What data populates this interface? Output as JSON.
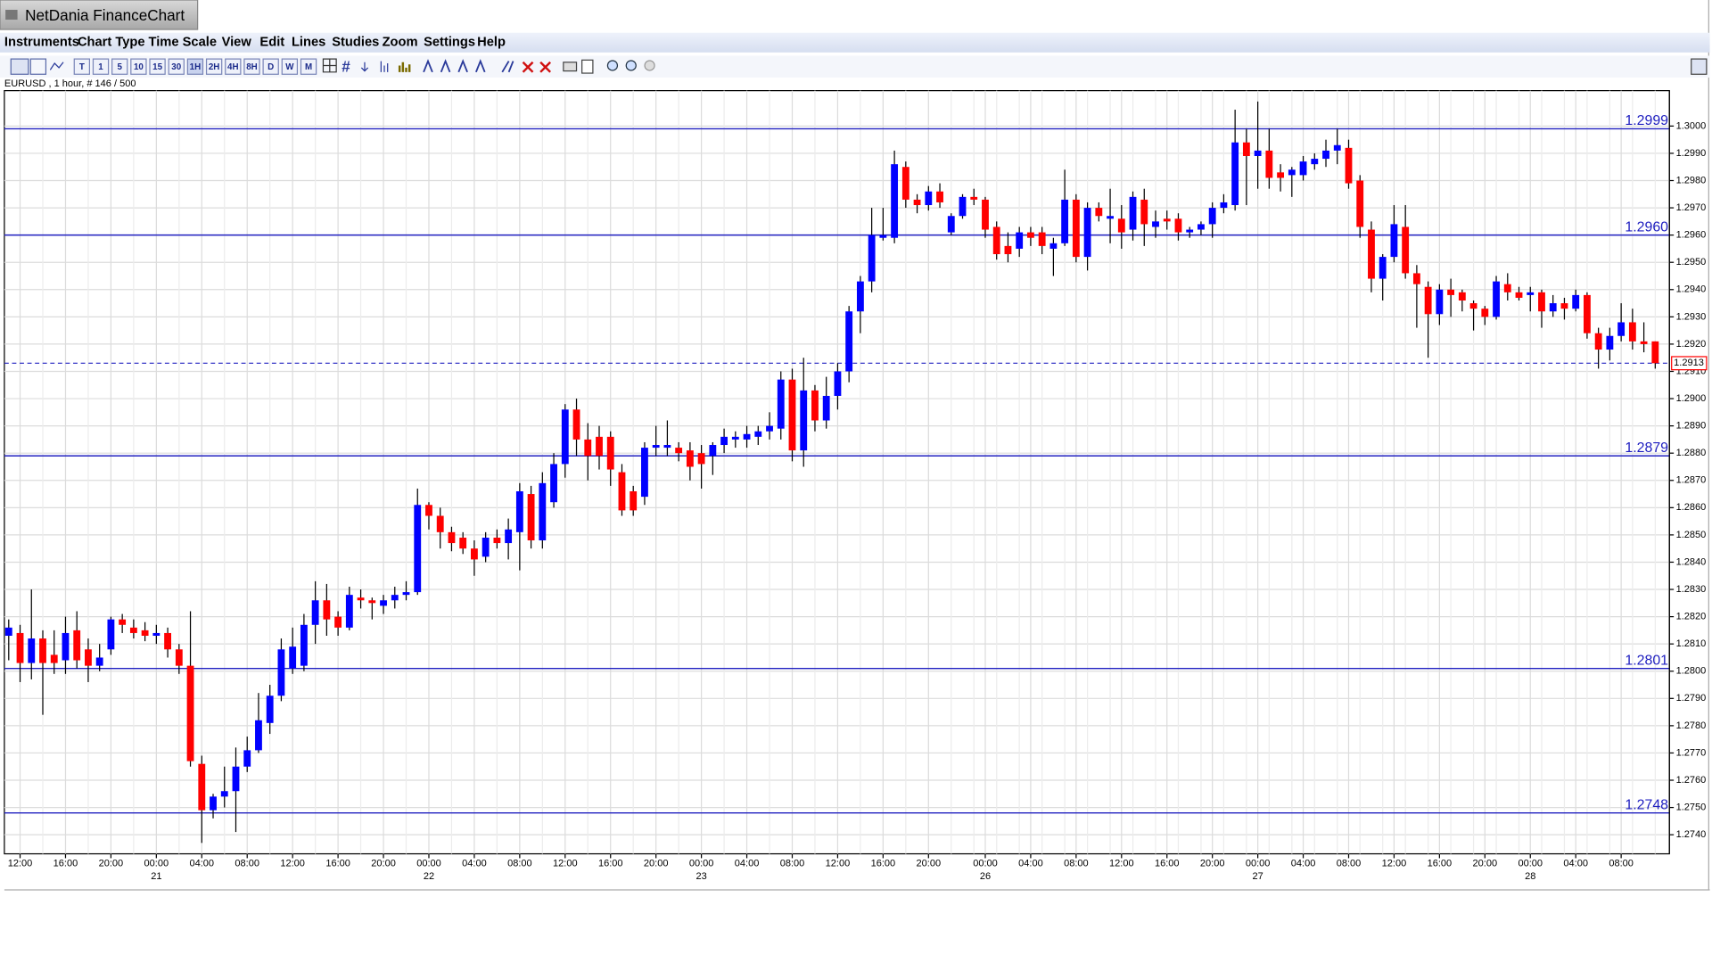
{
  "window": {
    "title": "NetDania FinanceChart",
    "menu": [
      "Instruments",
      "Chart Type",
      "Time Scale",
      "View",
      "Edit",
      "Lines",
      "Studies",
      "Zoom",
      "Settings",
      "Help"
    ],
    "toolbar": [
      "T",
      "1",
      "5",
      "10",
      "15",
      "30",
      "1H",
      "2H",
      "4H",
      "8H",
      "D",
      "W",
      "M"
    ]
  },
  "chart_data": {
    "type": "candlestick",
    "title": "EURUSD , 1 hour, # 146 / 500",
    "up_color": "#0000ff",
    "down_color": "#ff0000",
    "level_color": "#2020c0",
    "grid": true,
    "categories": [
      null,
      "12:00",
      null,
      null,
      null,
      "16:00",
      null,
      null,
      null,
      "20:00",
      null,
      null,
      null,
      "00:00",
      null,
      null,
      null,
      "04:00",
      null,
      null,
      null,
      "08:00",
      null,
      null,
      null,
      "12:00",
      null,
      null,
      null,
      "16:00",
      null,
      null,
      null,
      "20:00",
      null,
      null,
      null,
      "00:00",
      null,
      null,
      null,
      "04:00",
      null,
      null,
      null,
      "08:00",
      null,
      null,
      null,
      "12:00",
      null,
      null,
      null,
      "16:00",
      null,
      null,
      null,
      "20:00",
      null,
      null,
      null,
      "00:00",
      null,
      null,
      null,
      "04:00",
      null,
      null,
      null,
      "08:00",
      null,
      null,
      null,
      "12:00",
      null,
      null,
      null,
      "16:00",
      null,
      null,
      null,
      "20:00",
      null,
      null,
      null,
      null,
      "00:00",
      null,
      null,
      null,
      "04:00",
      null,
      null,
      null,
      "08:00",
      null,
      null,
      null,
      "12:00",
      null,
      null,
      null,
      "16:00",
      null,
      null,
      null,
      "20:00",
      null,
      null,
      null,
      "00:00",
      null,
      null,
      null,
      "04:00",
      null,
      null,
      null,
      "08:00",
      null,
      null,
      null,
      "12:00",
      null,
      null,
      null,
      "16:00",
      null,
      null,
      null,
      "20:00",
      null,
      null,
      null,
      "00:00",
      null,
      null,
      null,
      "04:00",
      null,
      null,
      null,
      "08:00",
      null,
      null,
      null
    ],
    "dates": [
      null,
      null,
      null,
      null,
      null,
      null,
      null,
      null,
      null,
      null,
      null,
      null,
      null,
      "21",
      null,
      null,
      null,
      null,
      null,
      null,
      null,
      null,
      null,
      null,
      null,
      null,
      null,
      null,
      null,
      null,
      null,
      null,
      null,
      null,
      null,
      null,
      null,
      "22",
      null,
      null,
      null,
      null,
      null,
      null,
      null,
      null,
      null,
      null,
      null,
      null,
      null,
      null,
      null,
      null,
      null,
      null,
      null,
      null,
      null,
      null,
      null,
      "23",
      null,
      null,
      null,
      null,
      null,
      null,
      null,
      null,
      null,
      null,
      null,
      null,
      null,
      null,
      null,
      null,
      null,
      null,
      null,
      null,
      null,
      null,
      null,
      null,
      "26",
      null,
      null,
      null,
      null,
      null,
      null,
      null,
      null,
      null,
      null,
      null,
      null,
      null,
      null,
      null,
      null,
      null,
      null,
      null,
      null,
      null,
      null,
      null,
      "27",
      null,
      null,
      null,
      null,
      null,
      null,
      null,
      null,
      null,
      null,
      null,
      null,
      null,
      null,
      null,
      null,
      null,
      null,
      null,
      null,
      null,
      null,
      null,
      "28",
      null,
      null,
      null,
      null,
      null,
      null,
      null,
      null,
      null,
      null,
      null
    ],
    "open": [
      1.2813,
      1.2814,
      1.2803,
      1.2812,
      1.2806,
      1.2804,
      1.2815,
      1.2808,
      1.2802,
      1.2808,
      1.2819,
      1.2816,
      1.2815,
      1.2813,
      1.2814,
      1.2808,
      1.2802,
      1.2766,
      1.2749,
      1.2754,
      1.2756,
      1.2765,
      1.2771,
      1.2781,
      1.2791,
      1.2801,
      1.2802,
      1.2817,
      1.2826,
      1.282,
      1.2816,
      1.2827,
      1.2826,
      1.2824,
      1.2826,
      1.2828,
      1.2829,
      1.2861,
      1.2857,
      1.2851,
      1.2849,
      1.2845,
      1.2842,
      1.2849,
      1.2847,
      1.2851,
      1.2865,
      1.2848,
      1.2862,
      1.2876,
      1.2896,
      1.2885,
      1.2886,
      1.2886,
      1.2873,
      1.2866,
      1.2864,
      1.2882,
      1.2882,
      1.2882,
      1.2881,
      1.288,
      1.2879,
      1.2883,
      1.2885,
      1.2885,
      1.2886,
      1.2888,
      1.2889,
      1.2907,
      1.2881,
      1.2903,
      1.2892,
      1.2901,
      1.291,
      1.2932,
      1.2943,
      1.2959,
      1.2959,
      1.2985,
      1.2973,
      1.2971,
      1.2976,
      1.2961,
      1.2967,
      1.2974,
      1.2973,
      1.2963,
      1.2956,
      1.2955,
      1.2961,
      1.2961,
      1.2955,
      1.2957,
      1.2973,
      1.2952,
      1.297,
      1.2966,
      1.2966,
      1.2962,
      1.2973,
      1.2963,
      1.2966,
      1.2966,
      1.2961,
      1.2962,
      1.2964,
      1.297,
      1.2971,
      1.2994,
      1.2989,
      1.2991,
      1.2983,
      1.2982,
      1.2982,
      1.2986,
      1.2988,
      1.2991,
      1.2992,
      1.298,
      1.2962,
      1.2944,
      1.2952,
      1.2963,
      1.2946,
      1.2941,
      1.2931,
      1.294,
      1.2939,
      1.2935,
      1.2933,
      1.293,
      1.2942,
      1.2939,
      1.2938,
      1.2939,
      1.2932,
      1.2935,
      1.2933,
      1.2938,
      1.2924,
      1.2918,
      1.2923,
      1.2928,
      1.2921,
      1.2921
    ],
    "high": [
      1.2819,
      1.2817,
      1.283,
      1.2815,
      1.2815,
      1.282,
      1.2822,
      1.2812,
      1.281,
      1.282,
      1.2821,
      1.2819,
      1.2818,
      1.2817,
      1.2816,
      1.281,
      1.2822,
      1.2769,
      1.2755,
      1.2765,
      1.2772,
      1.2776,
      1.2792,
      1.2795,
      1.2812,
      1.2816,
      1.2821,
      1.2833,
      1.2832,
      1.2822,
      1.2831,
      1.283,
      1.2827,
      1.2828,
      1.2831,
      1.2833,
      1.2867,
      1.2862,
      1.286,
      1.2853,
      1.2851,
      1.2848,
      1.2851,
      1.2852,
      1.2856,
      1.2869,
      1.2868,
      1.2873,
      1.288,
      1.2898,
      1.29,
      1.2891,
      1.289,
      1.2888,
      1.2876,
      1.2868,
      1.2884,
      1.289,
      1.2892,
      1.2884,
      1.2884,
      1.2883,
      1.2884,
      1.2889,
      1.2888,
      1.289,
      1.289,
      1.2895,
      1.291,
      1.2911,
      1.2915,
      1.2905,
      1.2908,
      1.2913,
      1.2934,
      1.2945,
      1.297,
      1.297,
      1.2991,
      1.2987,
      1.2975,
      1.2978,
      1.2979,
      1.2968,
      1.2975,
      1.2977,
      1.2974,
      1.2965,
      1.2961,
      1.2963,
      1.2963,
      1.2963,
      1.2959,
      1.2984,
      1.2975,
      1.2972,
      1.2972,
      1.2977,
      1.2971,
      1.2976,
      1.2977,
      1.2969,
      1.2969,
      1.2968,
      1.2963,
      1.2965,
      1.2972,
      1.2975,
      1.3006,
      1.2999,
      1.3009,
      1.2999,
      1.2986,
      1.2985,
      1.2989,
      1.299,
      1.2995,
      1.2999,
      1.2995,
      1.2982,
      1.2965,
      1.2953,
      1.2971,
      1.2971,
      1.2949,
      1.2943,
      1.2942,
      1.2944,
      1.294,
      1.2936,
      1.2934,
      1.2945,
      1.2946,
      1.2941,
      1.2941,
      1.294,
      1.2938,
      1.2937,
      1.294,
      1.2939,
      1.2926,
      1.2926,
      1.2935,
      1.2933,
      1.2928,
      1.2921
    ],
    "low": [
      1.2804,
      1.2796,
      1.2797,
      1.2784,
      1.2799,
      1.2799,
      1.2801,
      1.2796,
      1.28,
      1.2806,
      1.2814,
      1.2812,
      1.2811,
      1.281,
      1.2805,
      1.2799,
      1.2765,
      1.2737,
      1.2746,
      1.275,
      1.2741,
      1.2763,
      1.277,
      1.2777,
      1.2789,
      1.2799,
      1.28,
      1.281,
      1.2813,
      1.2813,
      1.2815,
      1.2823,
      1.2819,
      1.2821,
      1.2823,
      1.2826,
      1.2828,
      1.2852,
      1.2845,
      1.2844,
      1.2843,
      1.2835,
      1.284,
      1.2845,
      1.2841,
      1.2837,
      1.2845,
      1.2845,
      1.286,
      1.2871,
      1.2879,
      1.287,
      1.2874,
      1.2868,
      1.2857,
      1.2857,
      1.2861,
      1.2879,
      1.2879,
      1.2877,
      1.287,
      1.2867,
      1.2872,
      1.288,
      1.2882,
      1.2882,
      1.2883,
      1.2885,
      1.2885,
      1.2877,
      1.2875,
      1.2888,
      1.2889,
      1.2896,
      1.2906,
      1.2924,
      1.2939,
      1.2958,
      1.2957,
      1.297,
      1.2968,
      1.2969,
      1.297,
      1.296,
      1.2966,
      1.2971,
      1.2959,
      1.2951,
      1.295,
      1.2952,
      1.2956,
      1.2953,
      1.2945,
      1.2956,
      1.295,
      1.2947,
      1.2965,
      1.2957,
      1.2955,
      1.2958,
      1.2956,
      1.2959,
      1.2962,
      1.2958,
      1.2959,
      1.296,
      1.2959,
      1.2968,
      1.2969,
      1.2971,
      1.2977,
      1.2977,
      1.2976,
      1.2974,
      1.298,
      1.2984,
      1.2985,
      1.2986,
      1.2977,
      1.2959,
      1.2939,
      1.2936,
      1.295,
      1.2944,
      1.2926,
      1.2915,
      1.2927,
      1.293,
      1.2932,
      1.2925,
      1.2927,
      1.2929,
      1.2936,
      1.2936,
      1.2932,
      1.2926,
      1.293,
      1.2929,
      1.2932,
      1.2922,
      1.2911,
      1.2914,
      1.2921,
      1.2918,
      1.2917,
      1.2911
    ],
    "close": [
      1.2816,
      1.2803,
      1.2812,
      1.2803,
      1.2803,
      1.2814,
      1.2804,
      1.2802,
      1.2805,
      1.2819,
      1.2817,
      1.2814,
      1.2813,
      1.2814,
      1.2808,
      1.2802,
      1.2767,
      1.2749,
      1.2754,
      1.2756,
      1.2765,
      1.2771,
      1.2782,
      1.2791,
      1.2808,
      1.2809,
      1.2817,
      1.2826,
      1.2819,
      1.2816,
      1.2828,
      1.2826,
      1.2825,
      1.2826,
      1.2828,
      1.2829,
      1.2861,
      1.2857,
      1.2851,
      1.2847,
      1.2845,
      1.2841,
      1.2849,
      1.2847,
      1.2852,
      1.2866,
      1.2848,
      1.2869,
      1.2876,
      1.2896,
      1.2885,
      1.2879,
      1.2879,
      1.2874,
      1.2859,
      1.2859,
      1.2882,
      1.2883,
      1.2883,
      1.288,
      1.2875,
      1.2876,
      1.2883,
      1.2886,
      1.2886,
      1.2887,
      1.2888,
      1.289,
      1.2907,
      1.2881,
      1.2903,
      1.2892,
      1.2901,
      1.291,
      1.2932,
      1.2943,
      1.296,
      1.296,
      1.2986,
      1.2973,
      1.2971,
      1.2976,
      1.2972,
      1.2967,
      1.2974,
      1.2973,
      1.2962,
      1.2953,
      1.2953,
      1.2961,
      1.2959,
      1.2956,
      1.2957,
      1.2973,
      1.2952,
      1.297,
      1.2967,
      1.2967,
      1.2961,
      1.2974,
      1.2964,
      1.2965,
      1.2965,
      1.2961,
      1.2962,
      1.2964,
      1.297,
      1.2972,
      1.2994,
      1.2989,
      1.2991,
      1.2981,
      1.2981,
      1.2984,
      1.2987,
      1.2988,
      1.2991,
      1.2993,
      1.2979,
      1.2963,
      1.2944,
      1.2952,
      1.2964,
      1.2946,
      1.2942,
      1.2931,
      1.294,
      1.2938,
      1.2936,
      1.2933,
      1.293,
      1.2943,
      1.2939,
      1.2937,
      1.2939,
      1.2932,
      1.2935,
      1.2933,
      1.2938,
      1.2924,
      1.2918,
      1.2923,
      1.2928,
      1.2921,
      1.292,
      1.2913
    ],
    "ylim": [
      1.2733,
      1.3013
    ],
    "yticks": [
      {
        "value": 1.274,
        "label": "1.2740"
      },
      {
        "value": 1.275,
        "label": "1.2750"
      },
      {
        "value": 1.276,
        "label": "1.2760"
      },
      {
        "value": 1.277,
        "label": "1.2770"
      },
      {
        "value": 1.278,
        "label": "1.2780"
      },
      {
        "value": 1.279,
        "label": "1.2790"
      },
      {
        "value": 1.28,
        "label": "1.2800"
      },
      {
        "value": 1.281,
        "label": "1.2810"
      },
      {
        "value": 1.282,
        "label": "1.2820"
      },
      {
        "value": 1.283,
        "label": "1.2830"
      },
      {
        "value": 1.284,
        "label": "1.2840"
      },
      {
        "value": 1.285,
        "label": "1.2850"
      },
      {
        "value": 1.286,
        "label": "1.2860"
      },
      {
        "value": 1.287,
        "label": "1.2870"
      },
      {
        "value": 1.288,
        "label": "1.2880"
      },
      {
        "value": 1.289,
        "label": "1.2890"
      },
      {
        "value": 1.29,
        "label": "1.2900"
      },
      {
        "value": 1.291,
        "label": "1.2910"
      },
      {
        "value": 1.292,
        "label": "1.2920"
      },
      {
        "value": 1.293,
        "label": "1.2930"
      },
      {
        "value": 1.294,
        "label": "1.2940"
      },
      {
        "value": 1.295,
        "label": "1.2950"
      },
      {
        "value": 1.296,
        "label": "1.2960"
      },
      {
        "value": 1.297,
        "label": "1.2970"
      },
      {
        "value": 1.298,
        "label": "1.2980"
      },
      {
        "value": 1.299,
        "label": "1.2990"
      },
      {
        "value": 1.3,
        "label": "1.3000"
      }
    ],
    "levels": [
      1.2999,
      {
        "value": 1.296,
        "label": "1.2960"
      },
      1.2879,
      1.2801,
      1.2748
    ],
    "last": 1.2913
  }
}
